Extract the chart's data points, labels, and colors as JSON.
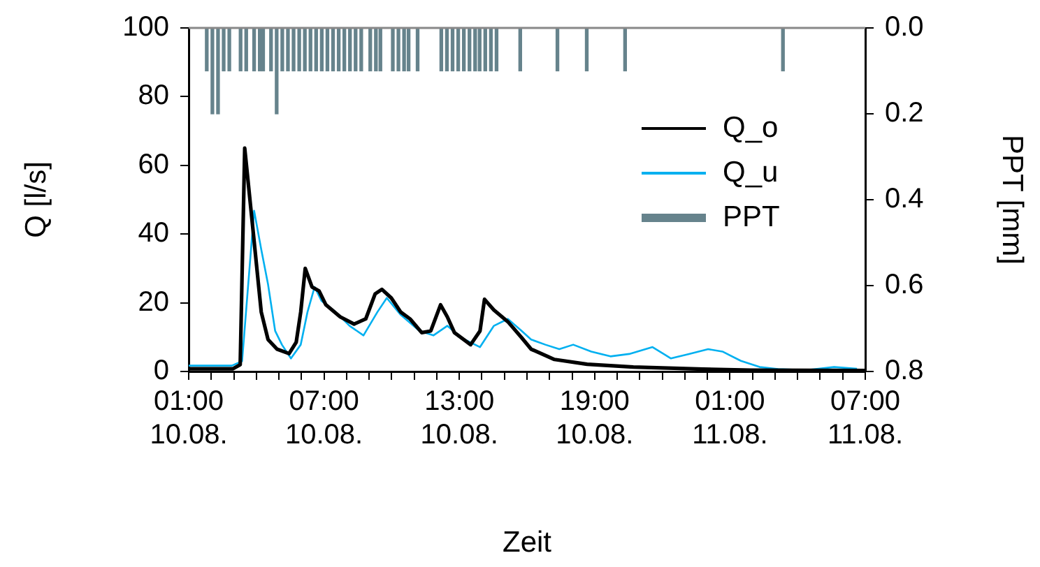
{
  "chart_data": {
    "type": "line",
    "xlabel": "Zeit",
    "ylabel": "Q [l/s]",
    "y2label": "PPT [mm]",
    "xlim": [
      "--08-10T01:00",
      "--08-11T07:00"
    ],
    "xticks": [
      {
        "value": "--08-10T01:00",
        "label": "01:00\n10.08."
      },
      {
        "value": "--08-10T02:00",
        "label": null
      },
      {
        "value": "--08-10T03:00",
        "label": null
      },
      {
        "value": "--08-10T04:00",
        "label": null
      },
      {
        "value": "--08-10T05:00",
        "label": null
      },
      {
        "value": "--08-10T06:00",
        "label": null
      },
      {
        "value": "--08-10T07:00",
        "label": "07:00\n10.08."
      },
      {
        "value": "--08-10T08:00",
        "label": null
      },
      {
        "value": "--08-10T09:00",
        "label": null
      },
      {
        "value": "--08-10T10:00",
        "label": null
      },
      {
        "value": "--08-10T11:00",
        "label": null
      },
      {
        "value": "--08-10T12:00",
        "label": null
      },
      {
        "value": "--08-10T13:00",
        "label": "13:00\n10.08."
      },
      {
        "value": "--08-10T14:00",
        "label": null
      },
      {
        "value": "--08-10T15:00",
        "label": null
      },
      {
        "value": "--08-10T16:00",
        "label": null
      },
      {
        "value": "--08-10T17:00",
        "label": null
      },
      {
        "value": "--08-10T18:00",
        "label": null
      },
      {
        "value": "--08-10T19:00",
        "label": "19:00\n10.08."
      },
      {
        "value": "--08-10T20:00",
        "label": null
      },
      {
        "value": "--08-10T21:00",
        "label": null
      },
      {
        "value": "--08-10T22:00",
        "label": null
      },
      {
        "value": "--08-10T23:00",
        "label": null
      },
      {
        "value": "--08-11T00:00",
        "label": null
      },
      {
        "value": "--08-11T01:00",
        "label": "01:00\n11.08."
      },
      {
        "value": "--08-11T02:00",
        "label": null
      },
      {
        "value": "--08-11T03:00",
        "label": null
      },
      {
        "value": "--08-11T04:00",
        "label": null
      },
      {
        "value": "--08-11T05:00",
        "label": null
      },
      {
        "value": "--08-11T06:00",
        "label": null
      },
      {
        "value": "--08-11T07:00",
        "label": "07:00\n11.08."
      }
    ],
    "ylim": [
      0,
      100
    ],
    "yticks": [
      0,
      20,
      40,
      60,
      80,
      100
    ],
    "y2lim": [
      0.8,
      0
    ],
    "y2ticks": [
      {
        "value": 0,
        "label": "0.0"
      },
      {
        "value": 0.2,
        "label": "0.2"
      },
      {
        "value": 0.4,
        "label": "0.4"
      },
      {
        "value": 0.6,
        "label": "0.6"
      },
      {
        "value": 0.8,
        "label": "0.8"
      }
    ],
    "grid": false,
    "legend": "top right",
    "marker": "none",
    "series": [
      {
        "name": "Q_o",
        "color": "#000000",
        "x": [
          "--08-10T01:00",
          "--08-10T02:58",
          "--08-10T03:17",
          "--08-10T03:29",
          "--08-10T03:47",
          "--08-10T04:13",
          "--08-10T04:31",
          "--08-10T04:55",
          "--08-10T05:27",
          "--08-10T05:46",
          "--08-10T05:58",
          "--08-10T06:10",
          "--08-10T06:28",
          "--08-10T06:47",
          "--08-10T07:05",
          "--08-10T07:43",
          "--08-10T08:20",
          "--08-10T08:51",
          "--08-10T09:16",
          "--08-10T09:34",
          "--08-10T09:59",
          "--08-10T10:24",
          "--08-10T10:49",
          "--08-10T11:20",
          "--08-10T11:44",
          "--08-10T12:10",
          "--08-10T12:28",
          "--08-10T12:47",
          "--08-10T13:30",
          "--08-10T13:55",
          "--08-10T14:07",
          "--08-10T14:32",
          "--08-10T15:09",
          "--08-10T15:46",
          "--08-10T16:11",
          "--08-10T17:13",
          "--08-10T18:40",
          "--08-10T20:43",
          "--08-10T23:49",
          "--08-11T01:55",
          "--08-11T07:00"
        ],
        "values": [
          0.8,
          0.8,
          2,
          65,
          45.6,
          17.3,
          9.3,
          6.5,
          5.2,
          8.5,
          17.3,
          30,
          24.6,
          23.4,
          19.4,
          15.9,
          13.8,
          15.3,
          22.6,
          23.9,
          21.4,
          17.3,
          15.3,
          11.3,
          11.8,
          19.4,
          15.9,
          11.3,
          7.8,
          11.8,
          21,
          17.9,
          14.5,
          9.8,
          6.5,
          3.5,
          2.1,
          1.3,
          0.7,
          0.4,
          0.3
        ]
      },
      {
        "name": "Q_u",
        "color": "#00b0f0",
        "x": [
          "--08-10T01:00",
          "--08-10T02:55",
          "--08-10T03:22",
          "--08-10T03:54",
          "--08-10T04:13",
          "--08-10T04:31",
          "--08-10T04:50",
          "--08-10T05:08",
          "--08-10T05:32",
          "--08-10T05:58",
          "--08-10T06:16",
          "--08-10T06:35",
          "--08-10T06:53",
          "--08-10T07:31",
          "--08-10T08:08",
          "--08-10T08:45",
          "--08-10T09:22",
          "--08-10T09:47",
          "--08-10T10:24",
          "--08-10T11:14",
          "--08-10T11:51",
          "--08-10T12:28",
          "--08-10T13:05",
          "--08-10T13:55",
          "--08-10T14:32",
          "--08-10T15:09",
          "--08-10T15:46",
          "--08-10T16:11",
          "--08-10T16:49",
          "--08-10T17:26",
          "--08-10T18:03",
          "--08-10T18:51",
          "--08-10T19:42",
          "--08-10T20:32",
          "--08-10T21:34",
          "--08-10T22:23",
          "--08-10T23:11",
          "--08-11T00:02",
          "--08-11T00:40",
          "--08-11T01:29",
          "--08-11T02:19",
          "--08-11T03:08",
          "--08-11T04:23",
          "--08-11T05:37",
          "--08-11T06:38"
        ],
        "values": [
          1.7,
          1.7,
          3,
          46.8,
          35.5,
          25.4,
          11.8,
          7.8,
          3.8,
          7.8,
          17.3,
          24.6,
          20.6,
          17.3,
          13.3,
          10.5,
          17.3,
          21.4,
          16.5,
          11.8,
          10.5,
          13.3,
          9.8,
          7.1,
          13.3,
          15.3,
          11.8,
          9.3,
          7.8,
          6.5,
          7.8,
          5.8,
          4.4,
          5.1,
          7.1,
          3.8,
          5.1,
          6.5,
          5.8,
          3.1,
          1.3,
          0.7,
          0.4,
          1.3,
          0.8
        ]
      },
      {
        "name": "PPT",
        "type": "bar",
        "axis": "y2",
        "color": "#66838c",
        "x": [
          "--08-10T01:48",
          "--08-10T02:03",
          "--08-10T02:18",
          "--08-10T02:33",
          "--08-10T02:48",
          "--08-10T03:18",
          "--08-10T03:33",
          "--08-10T03:54",
          "--08-10T04:09",
          "--08-10T04:18",
          "--08-10T04:39",
          "--08-10T04:54",
          "--08-10T05:09",
          "--08-10T05:24",
          "--08-10T05:39",
          "--08-10T05:54",
          "--08-10T06:09",
          "--08-10T06:24",
          "--08-10T06:39",
          "--08-10T06:54",
          "--08-10T07:09",
          "--08-10T07:24",
          "--08-10T07:39",
          "--08-10T07:54",
          "--08-10T08:09",
          "--08-10T08:24",
          "--08-10T08:39",
          "--08-10T09:03",
          "--08-10T09:18",
          "--08-10T09:30",
          "--08-10T10:03",
          "--08-10T10:18",
          "--08-10T10:33",
          "--08-10T10:45",
          "--08-10T11:09",
          "--08-10T12:12",
          "--08-10T12:27",
          "--08-10T12:42",
          "--08-10T12:57",
          "--08-10T13:12",
          "--08-10T13:27",
          "--08-10T13:42",
          "--08-10T13:54",
          "--08-10T14:09",
          "--08-10T14:24",
          "--08-10T14:39",
          "--08-10T15:42",
          "--08-10T17:21",
          "--08-10T18:39",
          "--08-10T20:21",
          "--08-11T03:21"
        ],
        "values": [
          0.1,
          0.2,
          0.2,
          0.1,
          0.1,
          0.1,
          0.1,
          0.1,
          0.1,
          0.1,
          0.1,
          0.2,
          0.1,
          0.1,
          0.1,
          0.1,
          0.1,
          0.1,
          0.1,
          0.1,
          0.1,
          0.1,
          0.1,
          0.1,
          0.1,
          0.1,
          0.1,
          0.1,
          0.1,
          0.1,
          0.1,
          0.1,
          0.1,
          0.1,
          0.1,
          0.1,
          0.1,
          0.1,
          0.1,
          0.1,
          0.1,
          0.1,
          0.1,
          0.1,
          0.1,
          0.1,
          0.1,
          0.1,
          0.1,
          0.1,
          0.1
        ]
      }
    ]
  }
}
